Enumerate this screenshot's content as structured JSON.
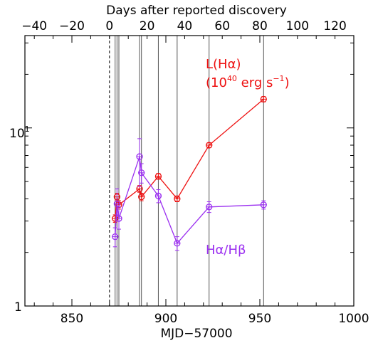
{
  "chart_data": {
    "type": "line",
    "title": "",
    "xlabel": "MJD−57000",
    "top_xlabel": "Days after reported discovery",
    "ylabel": "",
    "xlim": [
      825,
      1000
    ],
    "ylim": [
      1,
      33
    ],
    "log_y": true,
    "top_xlim": [
      -45,
      130
    ],
    "top_offset": 870,
    "x_ticks": [
      "850",
      "900",
      "950",
      "1000"
    ],
    "top_ticks": [
      "−40",
      "−20",
      "0",
      "20",
      "40",
      "60",
      "80",
      "100",
      "120"
    ],
    "y_tick_labels": {
      "ten": "10",
      "ten_exp": "1",
      "one": "1"
    },
    "discovery_line": 870,
    "epoch_lines": [
      873,
      874,
      875,
      886,
      887,
      896,
      906,
      923,
      952
    ],
    "series": [
      {
        "name": "L(Hα)",
        "name_line2": "(10",
        "name_exp1": "40",
        "name_line2b": " erg s",
        "name_exp2": "−1",
        "name_line2c": ")",
        "color": "#ee1111",
        "x": [
          873,
          874,
          875,
          886,
          887,
          896,
          906,
          923,
          952
        ],
        "y": [
          3.1,
          4.1,
          3.7,
          4.55,
          4.1,
          5.35,
          4.0,
          8.0,
          14.5
        ],
        "yerr_lo": [
          0.15,
          0.2,
          0.2,
          0.2,
          0.2,
          0.2,
          0.15,
          0.25,
          0.5
        ],
        "yerr_hi": [
          0.15,
          0.2,
          0.2,
          0.2,
          0.2,
          0.2,
          0.15,
          0.25,
          0.5
        ]
      },
      {
        "name": "Hα/Hβ",
        "color": "#9b30f0",
        "x": [
          873,
          874,
          875,
          886,
          887,
          896,
          906,
          923,
          952
        ],
        "y": [
          2.45,
          3.75,
          3.1,
          6.9,
          5.6,
          4.15,
          2.25,
          3.6,
          3.7
        ],
        "yerr_lo": [
          0.3,
          0.5,
          0.4,
          2.2,
          0.7,
          0.35,
          0.2,
          0.25,
          0.2
        ],
        "yerr_hi": [
          0.3,
          0.8,
          0.5,
          1.8,
          0.7,
          0.35,
          0.2,
          0.25,
          0.2
        ]
      }
    ]
  }
}
